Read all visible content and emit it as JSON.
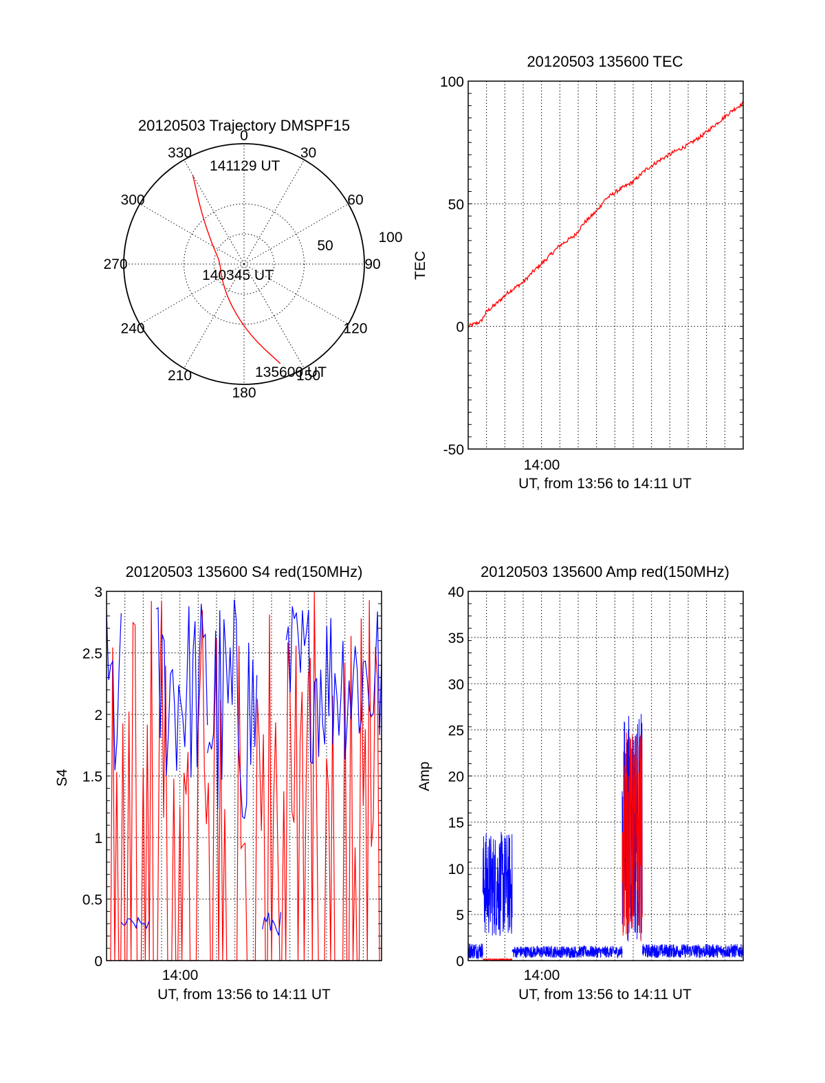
{
  "chart_data": [
    {
      "type": "polar",
      "title": "20120503 Trajectory DMSPF15",
      "angle_labels": [
        "0",
        "30",
        "60",
        "90",
        "120",
        "150",
        "180",
        "210",
        "240",
        "270",
        "300",
        "330"
      ],
      "radius_labels": [
        "50",
        "100"
      ],
      "zenith_angle_max": 100,
      "trajectory": {
        "color": "#ff0000",
        "points": [
          {
            "azimuth": 160,
            "zenith": 88
          },
          {
            "azimuth": 175,
            "zenith": 60
          },
          {
            "azimuth": 200,
            "zenith": 35
          },
          {
            "azimuth": 240,
            "zenith": 22
          },
          {
            "azimuth": 275,
            "zenith": 20
          },
          {
            "azimuth": 300,
            "zenith": 30
          },
          {
            "azimuth": 320,
            "zenith": 55
          },
          {
            "azimuth": 330,
            "zenith": 85
          }
        ]
      },
      "annotations": [
        "141129 UT",
        "140345 UT",
        "135600 UT"
      ]
    },
    {
      "type": "line",
      "title": "20120503 135600 TEC",
      "xlabel": "UT, from 13:56 to 14:11 UT",
      "ylabel": "TEC",
      "x_tick_labels": [
        "14:00"
      ],
      "y_tick_labels": [
        "100",
        "50",
        "0",
        "-50"
      ],
      "ylim": [
        -50,
        100
      ],
      "xlim_minutes": [
        0,
        15
      ],
      "series": [
        {
          "color": "#ff0000",
          "x_minutes": [
            0,
            0.7,
            1.0,
            1.5,
            2.2,
            3.0,
            3.5,
            4.2,
            5.0,
            5.8,
            6.3,
            7.0,
            7.5,
            8.3,
            9.0,
            9.7,
            10.5,
            11.2,
            12.0,
            12.8,
            13.6,
            14.4,
            15.0
          ],
          "values": [
            0,
            2,
            6,
            9,
            14,
            18,
            22,
            27,
            33,
            37,
            42,
            47,
            52,
            56,
            59,
            64,
            68,
            71,
            74,
            78,
            83,
            88,
            91
          ]
        }
      ]
    },
    {
      "type": "line",
      "title": "20120503 135600 S4 red(150MHz)",
      "xlabel": "UT, from 13:56 to 14:11 UT",
      "ylabel": "S4",
      "x_tick_labels": [
        "14:00"
      ],
      "y_tick_labels": [
        "3",
        "2.5",
        "2",
        "1.5",
        "1",
        "0.5",
        "0"
      ],
      "ylim": [
        0,
        3
      ],
      "xlim_minutes": [
        0,
        15
      ],
      "series": [
        {
          "color": "#0000ff",
          "segments": [
            {
              "x_range": [
                0,
                0.8
              ],
              "low": 1.2,
              "high": 2.9
            },
            {
              "x_range": [
                0.8,
                2.3
              ],
              "low": 0.25,
              "high": 0.35
            },
            {
              "x_range": [
                2.7,
                5.5
              ],
              "low": 1.4,
              "high": 3.0
            },
            {
              "x_range": [
                5.5,
                8.2
              ],
              "low": 1.0,
              "high": 3.0
            },
            {
              "x_range": [
                8.5,
                9.5
              ],
              "low": 0.2,
              "high": 0.4
            },
            {
              "x_range": [
                9.8,
                15
              ],
              "low": 1.6,
              "high": 3.0
            }
          ]
        },
        {
          "color": "#ff0000",
          "segments": [
            {
              "x_range": [
                0,
                15
              ],
              "low": 0,
              "high": 3.0
            }
          ]
        }
      ]
    },
    {
      "type": "line",
      "title": "20120503 135600 Amp red(150MHz)",
      "xlabel": "UT, from 13:56 to 14:11 UT",
      "ylabel": "Amp",
      "x_tick_labels": [
        "14:00"
      ],
      "y_tick_labels": [
        "40",
        "35",
        "30",
        "25",
        "20",
        "15",
        "10",
        "5",
        "0"
      ],
      "ylim": [
        0,
        40
      ],
      "xlim_minutes": [
        0,
        15
      ],
      "series": [
        {
          "color": "#0000ff",
          "segments": [
            {
              "x_range": [
                0,
                0.8
              ],
              "low": 0.2,
              "high": 2.0
            },
            {
              "x_range": [
                0.8,
                2.4
              ],
              "low": 2.5,
              "high": 14.0
            },
            {
              "x_range": [
                2.4,
                8.4
              ],
              "low": 0.3,
              "high": 1.6
            },
            {
              "x_range": [
                8.4,
                9.5
              ],
              "low": 2.0,
              "high": 27.0
            },
            {
              "x_range": [
                9.5,
                15
              ],
              "low": 0.3,
              "high": 1.8
            }
          ]
        },
        {
          "color": "#ff0000",
          "segments": [
            {
              "x_range": [
                0.8,
                2.4
              ],
              "low": 0,
              "high": 0.2
            },
            {
              "x_range": [
                8.4,
                9.5
              ],
              "low": 2.0,
              "high": 25.0
            }
          ]
        }
      ]
    }
  ]
}
